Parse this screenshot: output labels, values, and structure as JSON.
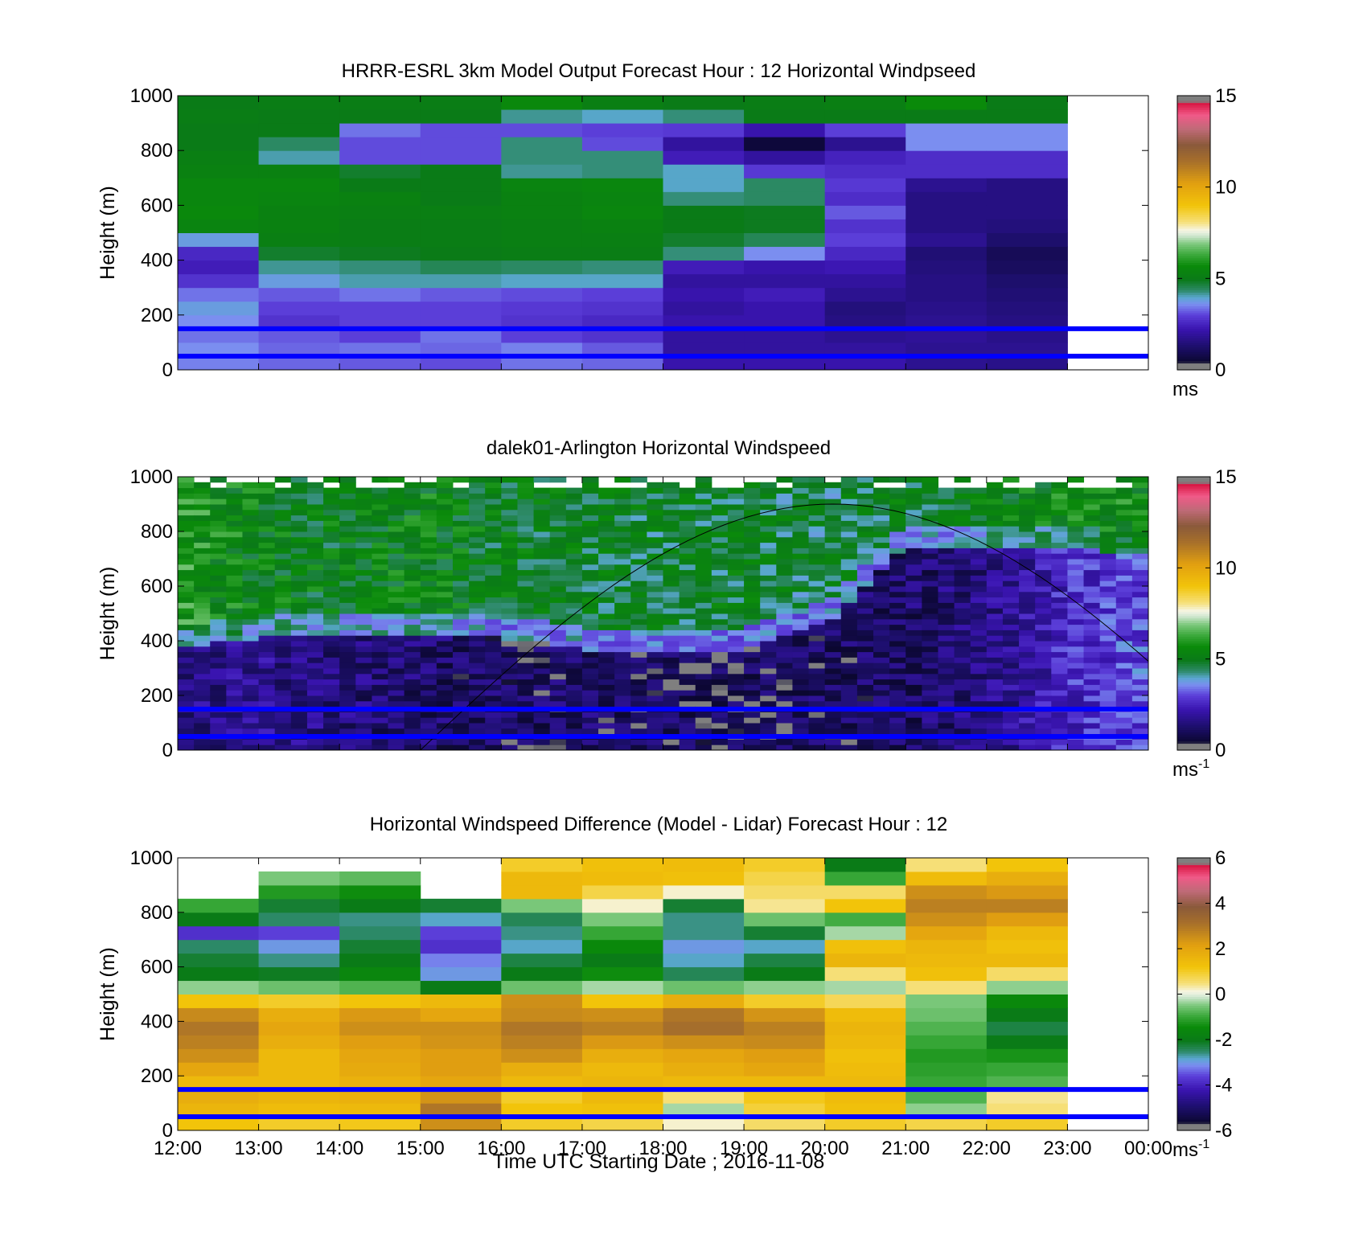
{
  "chart_data": [
    {
      "type": "heatmap",
      "title": "HRRR-ESRL 3km Model Output   Forecast Hour : 12 Horizontal Windpseed",
      "ylabel": "Height (m)",
      "ylim": [
        0,
        1000
      ],
      "yticks": [
        "0",
        "200",
        "400",
        "600",
        "800",
        "1000"
      ],
      "xlim_hours": [
        12,
        24
      ],
      "colorbar": {
        "min": 0,
        "max": 15,
        "ticks": [
          "0",
          "5",
          "10",
          "15"
        ],
        "unit": "ms",
        "unit_sup": ""
      },
      "reference_lines_m": [
        50,
        150
      ],
      "columns_start_hour": [
        12,
        13,
        14,
        15,
        16,
        17,
        18,
        19,
        20,
        21,
        22
      ],
      "column_width_hours": 1,
      "levels_m": [
        25,
        75,
        125,
        175,
        225,
        275,
        325,
        375,
        425,
        475,
        525,
        575,
        625,
        675,
        725,
        775,
        825,
        875,
        925,
        975
      ],
      "values": [
        [
          3.5,
          3.6,
          3.4,
          3.6,
          3.8,
          3.4,
          2.8,
          2.4,
          2.6,
          3.8,
          5.4,
          5.6,
          5.5,
          5.5,
          5.3,
          5.2,
          5.0,
          5.0,
          5.1,
          5.0
        ],
        [
          3.3,
          3.3,
          3.2,
          2.8,
          3.0,
          3.2,
          3.8,
          4.2,
          4.8,
          5.2,
          5.3,
          5.3,
          5.4,
          5.5,
          5.3,
          4.1,
          4.4,
          5.0,
          5.0,
          5.1
        ],
        [
          3.2,
          3.4,
          3.0,
          3.0,
          3.0,
          3.4,
          4.1,
          4.3,
          4.9,
          5.1,
          5.1,
          5.2,
          5.3,
          5.0,
          4.8,
          3.1,
          3.1,
          3.4,
          5.0,
          5.1
        ],
        [
          3.1,
          3.3,
          3.4,
          3.0,
          3.0,
          3.2,
          4.1,
          4.5,
          5.0,
          5.1,
          5.1,
          5.2,
          5.0,
          5.0,
          5.0,
          3.1,
          3.1,
          3.1,
          5.0,
          5.1
        ],
        [
          3.4,
          3.5,
          3.0,
          2.8,
          2.9,
          3.1,
          4.0,
          4.4,
          5.1,
          5.2,
          5.2,
          5.3,
          5.3,
          5.4,
          4.2,
          4.3,
          4.3,
          3.1,
          4.2,
          5.6
        ],
        [
          3.3,
          3.2,
          2.8,
          2.6,
          2.8,
          3.0,
          4.0,
          4.3,
          5.1,
          5.2,
          5.3,
          5.5,
          5.4,
          5.5,
          4.3,
          4.3,
          3.1,
          3.0,
          4.0,
          5.2
        ],
        [
          2.2,
          2.0,
          2.0,
          2.2,
          2.0,
          2.2,
          2.0,
          2.4,
          4.3,
          4.8,
          5.0,
          5.0,
          4.3,
          4.0,
          4.0,
          2.4,
          2.0,
          2.9,
          4.3,
          5.0
        ],
        [
          2.2,
          2.0,
          2.0,
          2.2,
          2.2,
          2.4,
          2.0,
          2.2,
          3.6,
          4.5,
          4.9,
          4.9,
          4.4,
          4.4,
          2.9,
          2.0,
          0.6,
          2.2,
          5.0,
          5.1
        ],
        [
          2.2,
          2.0,
          1.8,
          1.6,
          1.5,
          1.8,
          2.0,
          2.3,
          2.6,
          3.0,
          2.8,
          3.2,
          2.7,
          2.9,
          2.7,
          2.5,
          1.8,
          3.0,
          5.0,
          5.2
        ],
        [
          1.8,
          1.8,
          1.9,
          1.8,
          1.7,
          1.6,
          1.6,
          1.5,
          1.4,
          1.8,
          1.6,
          1.6,
          1.6,
          1.8,
          2.7,
          2.7,
          3.6,
          3.6,
          5.0,
          5.7
        ],
        [
          1.7,
          1.8,
          1.7,
          1.6,
          1.5,
          1.4,
          1.3,
          1.1,
          1.0,
          1.3,
          1.5,
          1.6,
          1.6,
          1.6,
          2.7,
          2.7,
          3.6,
          3.6,
          5.0,
          5.0
        ]
      ]
    },
    {
      "type": "heatmap",
      "title": "dalek01-Arlington  Horizontal Windspeed",
      "ylabel": "Height (m)",
      "ylim": [
        0,
        1000
      ],
      "yticks": [
        "0",
        "200",
        "400",
        "600",
        "800",
        "1000"
      ],
      "xlim_hours": [
        12,
        24
      ],
      "colorbar": {
        "min": 0,
        "max": 15,
        "ticks": [
          "0",
          "5",
          "10",
          "15"
        ],
        "unit": "ms",
        "unit_sup": "-1"
      },
      "reference_lines_m": [
        50,
        150
      ],
      "column_width_hours": 0.2,
      "lidar_profile_anchors": {
        "hours": [
          12.0,
          13.0,
          14.0,
          15.0,
          16.0,
          17.0,
          18.0,
          19.0,
          20.0,
          21.0,
          22.0,
          23.0,
          23.8
        ],
        "low_speed": [
          1.6,
          1.8,
          1.5,
          1.3,
          1.1,
          1.2,
          1.0,
          0.9,
          1.1,
          1.2,
          1.6,
          2.6,
          3.1
        ],
        "transition_m": [
          440,
          470,
          480,
          480,
          470,
          430,
          420,
          430,
          520,
          800,
          810,
          800,
          780
        ],
        "upper_speed": [
          6.0,
          5.3,
          5.1,
          5.4,
          5.0,
          4.9,
          4.8,
          4.9,
          4.6,
          4.9,
          5.0,
          5.5,
          5.6
        ]
      },
      "curve_label": ""
    },
    {
      "type": "heatmap",
      "title": "Horizontal Windspeed Difference (Model - Lidar) Forecast Hour : 12",
      "ylabel": "Height (m)",
      "xlabel": "Time UTC  Starting Date ; 2016-11-08",
      "ylim": [
        0,
        1000
      ],
      "yticks": [
        "0",
        "200",
        "400",
        "600",
        "800",
        "1000"
      ],
      "xticks": [
        "12:00",
        "13:00",
        "14:00",
        "15:00",
        "16:00",
        "17:00",
        "18:00",
        "19:00",
        "20:00",
        "21:00",
        "22:00",
        "23:00",
        "00:00"
      ],
      "xlim_hours": [
        12,
        24
      ],
      "colorbar": {
        "min": -6,
        "max": 6,
        "ticks": [
          "-6",
          "-4",
          "-2",
          "0",
          "2",
          "4",
          "6"
        ],
        "unit": "ms",
        "unit_sup": "-1"
      },
      "reference_lines_m": [
        50,
        150
      ],
      "columns_start_hour": [
        12,
        13,
        14,
        15,
        16,
        17,
        18,
        19,
        20,
        21,
        22
      ],
      "column_width_hours": 1,
      "levels_m": [
        25,
        75,
        125,
        175,
        225,
        275,
        325,
        375,
        425,
        475,
        525,
        575,
        625,
        675,
        725,
        775,
        825,
        875,
        925,
        975
      ],
      "values": [
        [
          1.2,
          1.6,
          1.8,
          1.5,
          2.0,
          2.5,
          2.8,
          3.0,
          2.6,
          1.2,
          -0.4,
          -2.0,
          -2.2,
          -2.5,
          -3.8,
          -2.0,
          -1.0,
          null,
          null,
          null
        ],
        [
          1.0,
          1.4,
          1.6,
          1.5,
          1.5,
          1.5,
          1.8,
          2.0,
          1.8,
          1.0,
          -0.6,
          -2.1,
          -2.6,
          -3.0,
          -3.6,
          -2.5,
          -2.2,
          -1.2,
          -0.5,
          null
        ],
        [
          1.1,
          1.5,
          1.7,
          1.7,
          1.9,
          2.0,
          2.2,
          2.5,
          2.3,
          1.2,
          -0.8,
          -1.6,
          -2.0,
          -2.2,
          -2.5,
          -2.6,
          -2.0,
          -1.4,
          -0.7,
          null
        ],
        [
          2.5,
          3.0,
          2.4,
          2.0,
          2.2,
          2.2,
          2.4,
          2.5,
          2.0,
          1.5,
          -2.0,
          -3.0,
          -3.2,
          -3.8,
          -3.6,
          -2.8,
          -2.2,
          null,
          null,
          null
        ],
        [
          1.0,
          1.2,
          1.0,
          1.5,
          1.8,
          2.5,
          2.8,
          3.0,
          2.6,
          2.5,
          -0.6,
          -2.0,
          -2.3,
          -2.8,
          -2.6,
          -2.4,
          -0.5,
          1.5,
          1.5,
          1.0
        ],
        [
          0.8,
          1.3,
          1.5,
          1.6,
          1.5,
          1.8,
          2.3,
          2.8,
          2.5,
          1.2,
          -0.3,
          -1.4,
          -2.0,
          -1.5,
          -1.0,
          -0.5,
          0.2,
          0.8,
          1.4,
          1.3
        ],
        [
          0.2,
          -0.3,
          0.5,
          1.5,
          1.8,
          2.0,
          2.5,
          3.2,
          3.0,
          1.8,
          -0.6,
          -2.4,
          -2.8,
          -3.0,
          -2.6,
          -2.6,
          -2.2,
          0.2,
          1.3,
          1.4
        ],
        [
          0.6,
          0.9,
          1.1,
          1.5,
          2.0,
          2.2,
          2.6,
          2.8,
          2.4,
          1.0,
          -0.4,
          -2.0,
          -2.3,
          -2.8,
          -2.2,
          -0.6,
          0.4,
          0.6,
          0.8,
          1.0
        ],
        [
          1.0,
          1.3,
          1.4,
          1.5,
          1.4,
          1.3,
          1.5,
          1.6,
          1.4,
          0.7,
          -0.3,
          0.5,
          1.6,
          1.3,
          -0.3,
          -0.9,
          1.2,
          0.6,
          -1.0,
          -2.0
        ],
        [
          0.8,
          -0.4,
          -0.8,
          -1.0,
          -1.1,
          -1.2,
          -1.0,
          -0.8,
          -0.6,
          -0.5,
          0.5,
          1.3,
          1.5,
          1.6,
          2.0,
          2.5,
          2.8,
          2.5,
          1.4,
          0.5
        ],
        [
          1.0,
          0.5,
          0.4,
          -0.8,
          -1.0,
          -1.3,
          -2.0,
          -2.3,
          -2.0,
          -1.5,
          -0.4,
          0.6,
          1.5,
          1.3,
          1.5,
          2.2,
          2.8,
          2.3,
          1.8,
          1.2
        ]
      ]
    }
  ]
}
